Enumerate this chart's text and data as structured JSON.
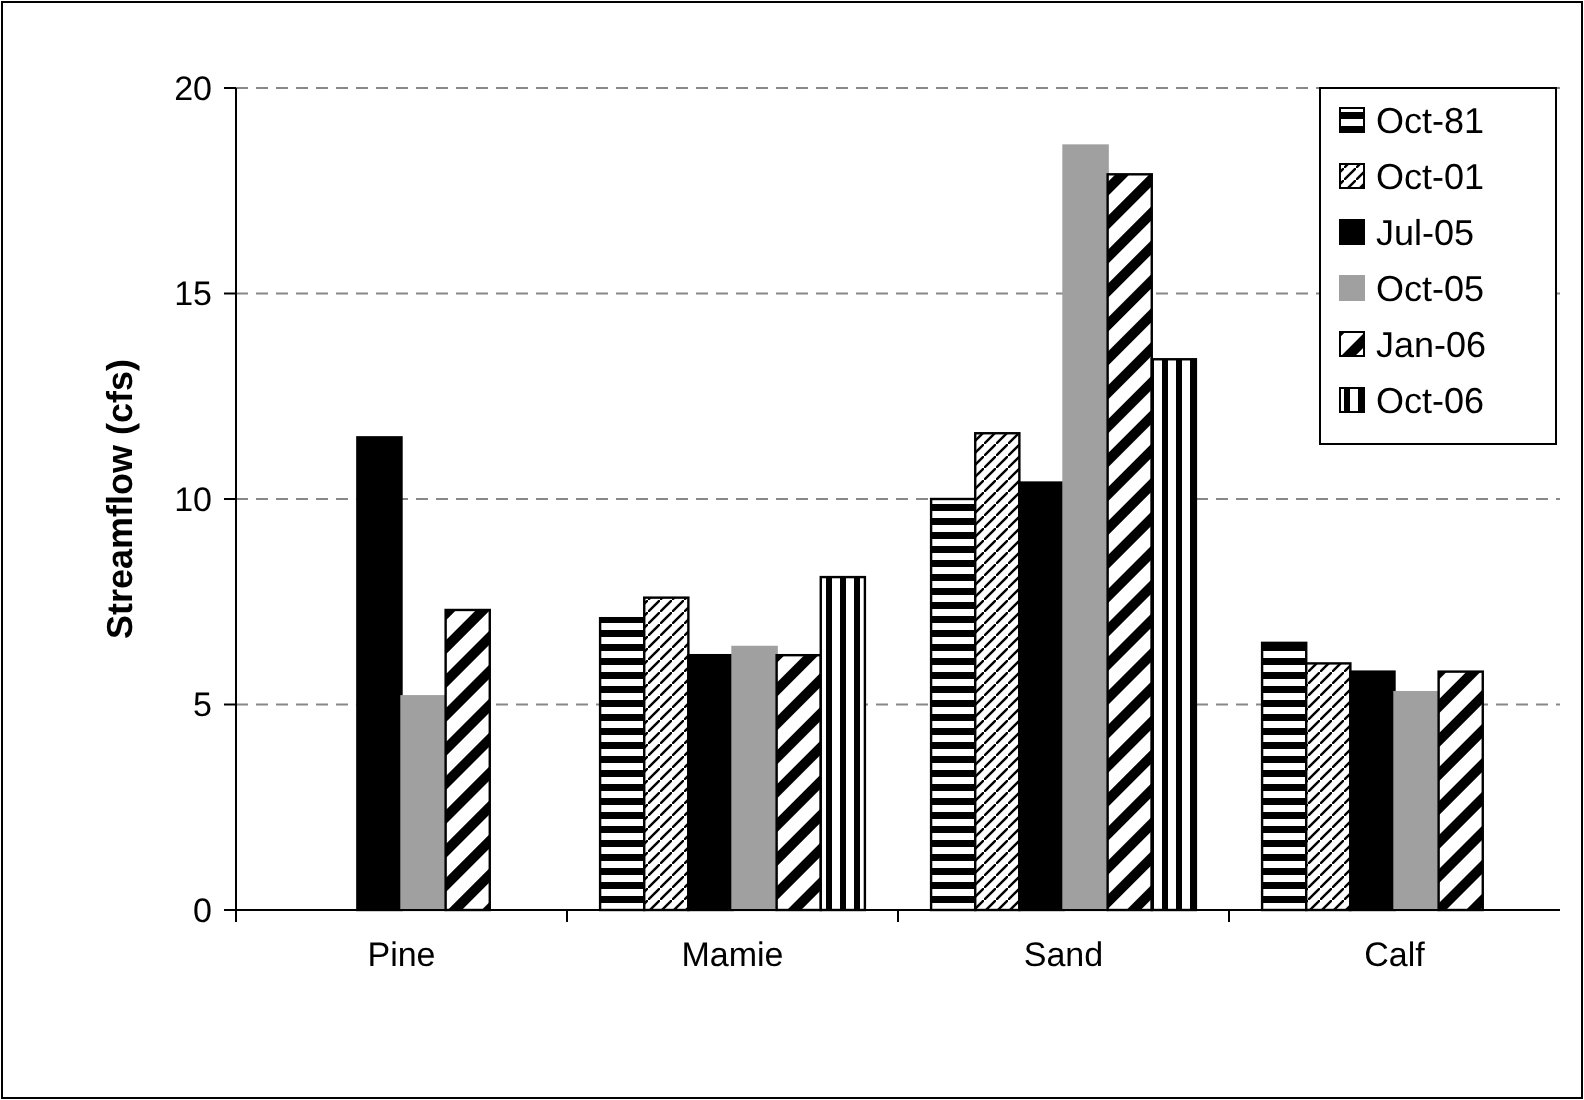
{
  "chart_data": {
    "type": "bar",
    "ylabel": "Streamflow (cfs)",
    "categories": [
      "Pine",
      "Mamie",
      "Sand",
      "Calf"
    ],
    "series": [
      {
        "name": "Oct-81",
        "color": "#000000",
        "values": [
          null,
          7.1,
          10.0,
          6.5
        ]
      },
      {
        "name": "Oct-01",
        "color": "#000000",
        "values": [
          null,
          7.6,
          11.6,
          6.0
        ]
      },
      {
        "name": "Jul-05",
        "color": "#000000",
        "values": [
          11.5,
          6.2,
          10.4,
          5.8
        ]
      },
      {
        "name": "Oct-05",
        "color": "#a0a0a0",
        "values": [
          5.2,
          6.4,
          18.6,
          5.3
        ]
      },
      {
        "name": "Jan-06",
        "color": "#000000",
        "values": [
          7.3,
          6.2,
          17.9,
          5.8
        ]
      },
      {
        "name": "Oct-06",
        "color": "#000000",
        "values": [
          null,
          8.1,
          13.4,
          null
        ]
      }
    ],
    "ylim": [
      0,
      20
    ],
    "yticks": [
      0,
      5,
      10,
      15,
      20
    ],
    "grid": "y",
    "legend": "top right"
  }
}
